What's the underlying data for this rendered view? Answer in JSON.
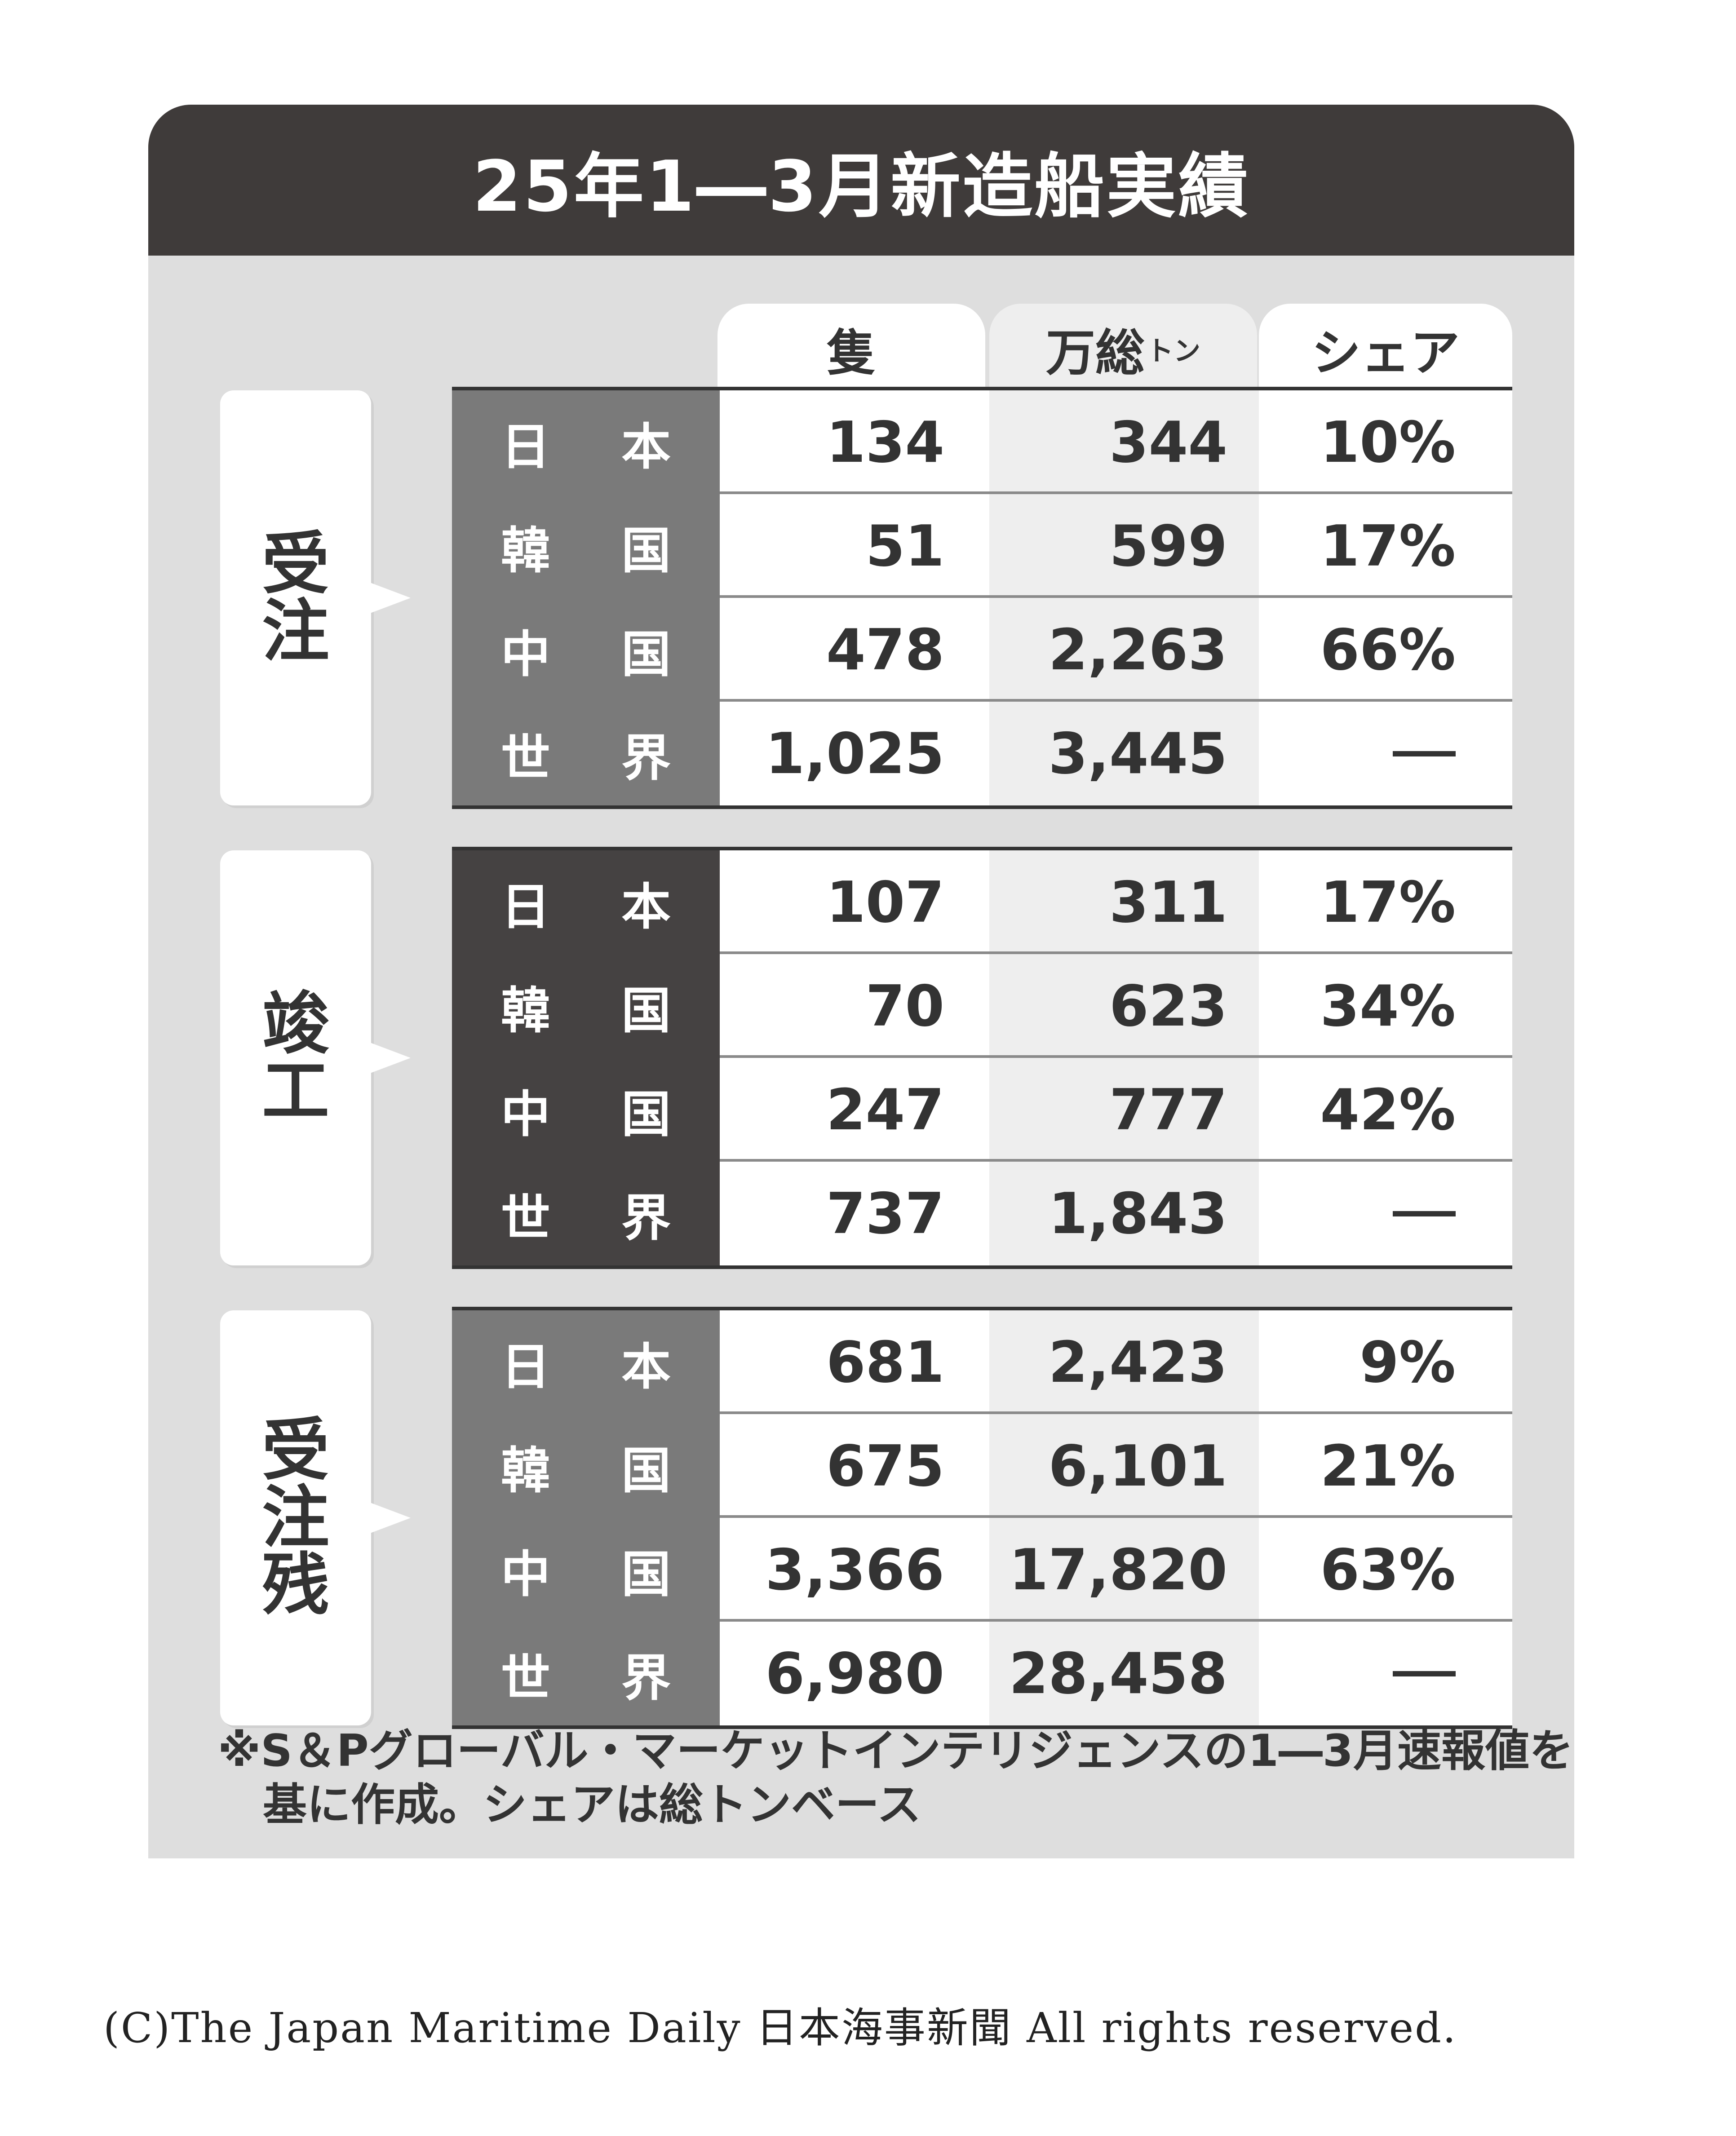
{
  "title": "25年1―3月新造船実績",
  "columns": {
    "vessels": "隻",
    "gt": "万総",
    "gt_sup": "トン",
    "share": "シェア"
  },
  "colors": {
    "title_bg": "#3f3b3a",
    "panel_bg": "#dedede",
    "country_bg_light": "#7a7a7a",
    "country_bg_dark": "#454242"
  },
  "chart_data": {
    "type": "table",
    "title": "25年1―3月新造船実績",
    "columns": [
      "隻",
      "万総トン",
      "シェア"
    ],
    "sections": [
      {
        "label": "受注",
        "rows": [
          {
            "country": "日 本",
            "vessels": "134",
            "gt": "344",
            "share": "10%"
          },
          {
            "country": "韓 国",
            "vessels": "51",
            "gt": "599",
            "share": "17%"
          },
          {
            "country": "中 国",
            "vessels": "478",
            "gt": "2,263",
            "share": "66%"
          },
          {
            "country": "世 界",
            "vessels": "1,025",
            "gt": "3,445",
            "share": "―"
          }
        ]
      },
      {
        "label": "竣工",
        "rows": [
          {
            "country": "日 本",
            "vessels": "107",
            "gt": "311",
            "share": "17%"
          },
          {
            "country": "韓 国",
            "vessels": "70",
            "gt": "623",
            "share": "34%"
          },
          {
            "country": "中 国",
            "vessels": "247",
            "gt": "777",
            "share": "42%"
          },
          {
            "country": "世 界",
            "vessels": "737",
            "gt": "1,843",
            "share": "―"
          }
        ]
      },
      {
        "label": "受注残",
        "rows": [
          {
            "country": "日 本",
            "vessels": "681",
            "gt": "2,423",
            "share": "9%"
          },
          {
            "country": "韓 国",
            "vessels": "675",
            "gt": "6,101",
            "share": "21%"
          },
          {
            "country": "中 国",
            "vessels": "3,366",
            "gt": "17,820",
            "share": "63%"
          },
          {
            "country": "世 界",
            "vessels": "6,980",
            "gt": "28,458",
            "share": "―"
          }
        ]
      }
    ]
  },
  "note": {
    "line1": "※S＆Pグローバル・マーケットインテリジェンスの1―3月速報値を",
    "line2": "基に作成。シェアは総トンベース"
  },
  "copyright": "(C)The Japan Maritime Daily 日本海事新聞 All rights reserved."
}
